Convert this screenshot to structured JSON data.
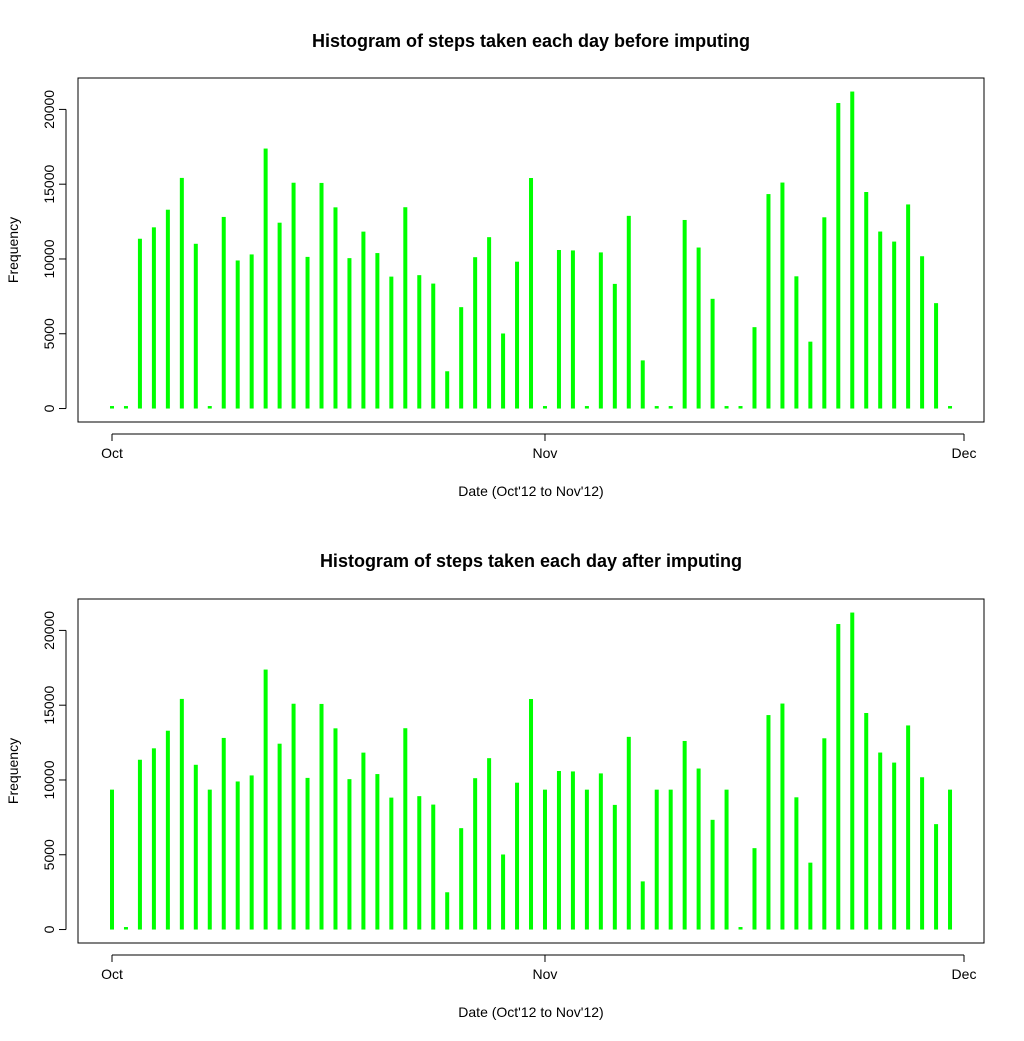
{
  "chart_data": [
    {
      "type": "bar",
      "title": "Histogram of steps taken each day before imputing",
      "xlabel": "Date (Oct'12 to Nov'12)",
      "ylabel": "Frequency",
      "bar_color": "#00ff00",
      "ylim": [
        -900,
        22100
      ],
      "xlim": [
        "2012-09-30",
        "2012-12-01"
      ],
      "x_ticks": [
        {
          "label": "Oct",
          "date": "2012-10-01"
        },
        {
          "label": "Nov",
          "date": "2012-11-01"
        },
        {
          "label": "Dec",
          "date": "2012-12-01"
        }
      ],
      "y_ticks": [
        0,
        5000,
        10000,
        15000,
        20000
      ],
      "dates": [
        "2012-10-01",
        "2012-10-02",
        "2012-10-03",
        "2012-10-04",
        "2012-10-05",
        "2012-10-06",
        "2012-10-07",
        "2012-10-08",
        "2012-10-09",
        "2012-10-10",
        "2012-10-11",
        "2012-10-12",
        "2012-10-13",
        "2012-10-14",
        "2012-10-15",
        "2012-10-16",
        "2012-10-17",
        "2012-10-18",
        "2012-10-19",
        "2012-10-20",
        "2012-10-21",
        "2012-10-22",
        "2012-10-23",
        "2012-10-24",
        "2012-10-25",
        "2012-10-26",
        "2012-10-27",
        "2012-10-28",
        "2012-10-29",
        "2012-10-30",
        "2012-10-31",
        "2012-11-01",
        "2012-11-02",
        "2012-11-03",
        "2012-11-04",
        "2012-11-05",
        "2012-11-06",
        "2012-11-07",
        "2012-11-08",
        "2012-11-09",
        "2012-11-10",
        "2012-11-11",
        "2012-11-12",
        "2012-11-13",
        "2012-11-14",
        "2012-11-15",
        "2012-11-16",
        "2012-11-17",
        "2012-11-18",
        "2012-11-19",
        "2012-11-20",
        "2012-11-21",
        "2012-11-22",
        "2012-11-23",
        "2012-11-24",
        "2012-11-25",
        "2012-11-26",
        "2012-11-27",
        "2012-11-28",
        "2012-11-29",
        "2012-11-30"
      ],
      "values": [
        0,
        126,
        11352,
        12116,
        13294,
        15420,
        11015,
        0,
        12811,
        9900,
        10304,
        17382,
        12426,
        15098,
        10139,
        15084,
        13452,
        10056,
        11829,
        10395,
        8821,
        13460,
        8918,
        8355,
        2492,
        6778,
        10119,
        11458,
        5018,
        9819,
        15414,
        0,
        10600,
        10571,
        0,
        10439,
        8334,
        12883,
        3219,
        0,
        0,
        12608,
        10765,
        7336,
        0,
        41,
        5441,
        14339,
        15110,
        8841,
        4472,
        12787,
        20427,
        21194,
        14478,
        11834,
        11162,
        13646,
        10183,
        7047,
        0
      ]
    },
    {
      "type": "bar",
      "title": "Histogram of steps taken each day after imputing",
      "xlabel": "Date (Oct'12 to Nov'12)",
      "ylabel": "Frequency",
      "bar_color": "#00ff00",
      "ylim": [
        -900,
        22100
      ],
      "xlim": [
        "2012-09-30",
        "2012-12-01"
      ],
      "x_ticks": [
        {
          "label": "Oct",
          "date": "2012-10-01"
        },
        {
          "label": "Nov",
          "date": "2012-11-01"
        },
        {
          "label": "Dec",
          "date": "2012-12-01"
        }
      ],
      "y_ticks": [
        0,
        5000,
        10000,
        15000,
        20000
      ],
      "dates": [
        "2012-10-01",
        "2012-10-02",
        "2012-10-03",
        "2012-10-04",
        "2012-10-05",
        "2012-10-06",
        "2012-10-07",
        "2012-10-08",
        "2012-10-09",
        "2012-10-10",
        "2012-10-11",
        "2012-10-12",
        "2012-10-13",
        "2012-10-14",
        "2012-10-15",
        "2012-10-16",
        "2012-10-17",
        "2012-10-18",
        "2012-10-19",
        "2012-10-20",
        "2012-10-21",
        "2012-10-22",
        "2012-10-23",
        "2012-10-24",
        "2012-10-25",
        "2012-10-26",
        "2012-10-27",
        "2012-10-28",
        "2012-10-29",
        "2012-10-30",
        "2012-10-31",
        "2012-11-01",
        "2012-11-02",
        "2012-11-03",
        "2012-11-04",
        "2012-11-05",
        "2012-11-06",
        "2012-11-07",
        "2012-11-08",
        "2012-11-09",
        "2012-11-10",
        "2012-11-11",
        "2012-11-12",
        "2012-11-13",
        "2012-11-14",
        "2012-11-15",
        "2012-11-16",
        "2012-11-17",
        "2012-11-18",
        "2012-11-19",
        "2012-11-20",
        "2012-11-21",
        "2012-11-22",
        "2012-11-23",
        "2012-11-24",
        "2012-11-25",
        "2012-11-26",
        "2012-11-27",
        "2012-11-28",
        "2012-11-29",
        "2012-11-30"
      ],
      "values": [
        9354,
        126,
        11352,
        12116,
        13294,
        15420,
        11015,
        9354,
        12811,
        9900,
        10304,
        17382,
        12426,
        15098,
        10139,
        15084,
        13452,
        10056,
        11829,
        10395,
        8821,
        13460,
        8918,
        8355,
        2492,
        6778,
        10119,
        11458,
        5018,
        9819,
        15414,
        9354,
        10600,
        10571,
        9354,
        10439,
        8334,
        12883,
        3219,
        9354,
        9354,
        12608,
        10765,
        7336,
        9354,
        41,
        5441,
        14339,
        15110,
        8841,
        4472,
        12787,
        20427,
        21194,
        14478,
        11834,
        11162,
        13646,
        10183,
        7047,
        9354
      ]
    }
  ]
}
